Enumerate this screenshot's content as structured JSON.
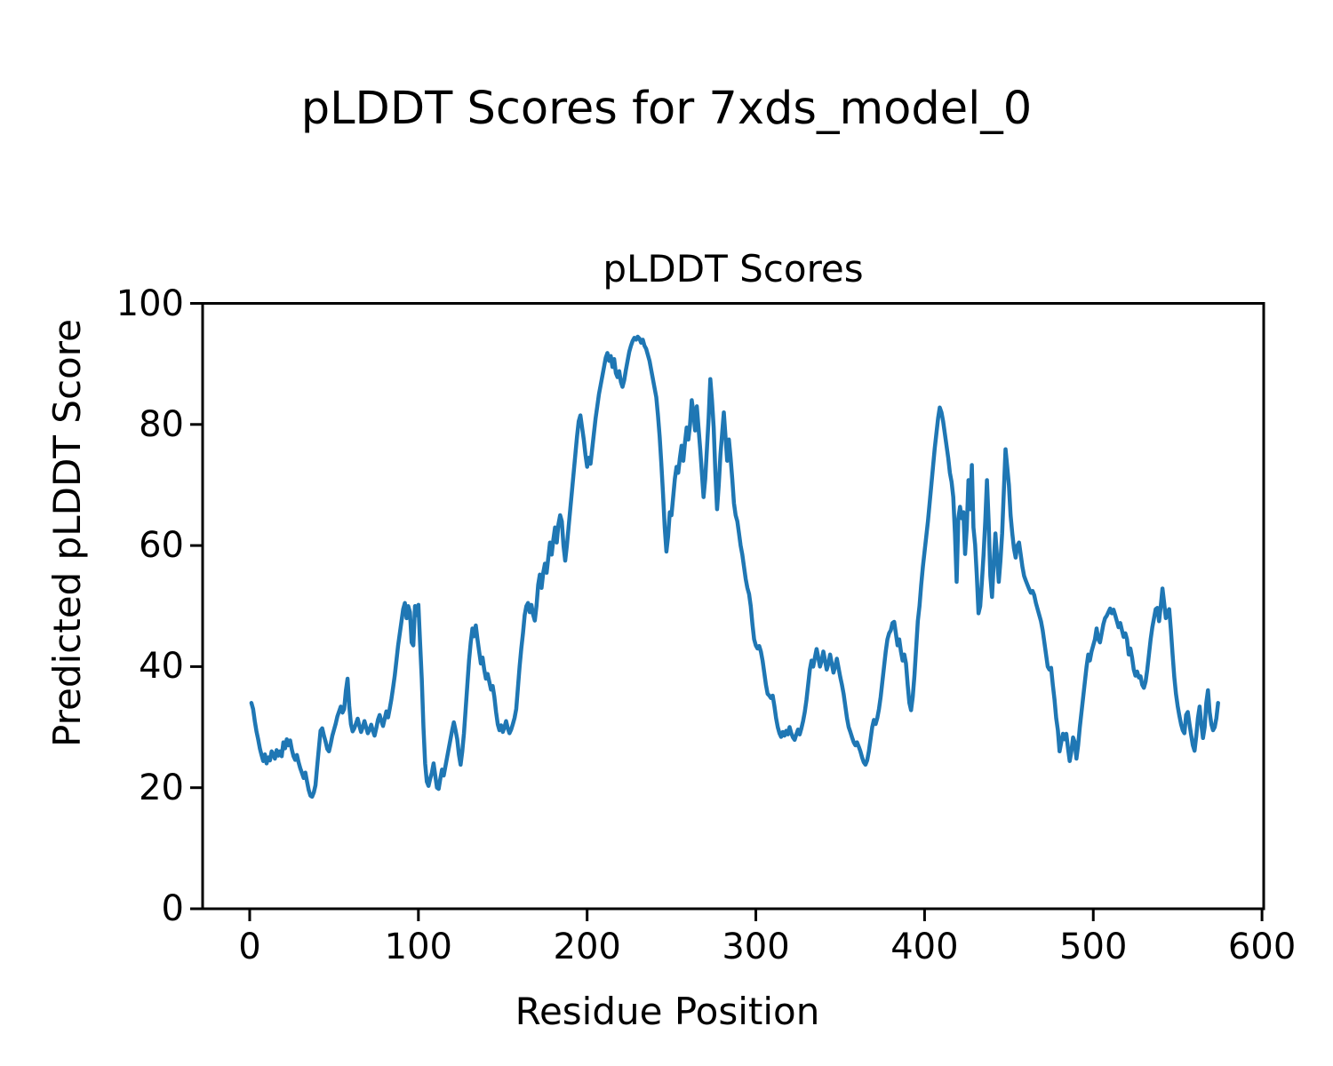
{
  "figure": {
    "suptitle": "pLDDT Scores for 7xds_model_0",
    "axes_title": "pLDDT Scores",
    "xlabel": "Residue Position",
    "ylabel": "Predicted pLDDT Score"
  },
  "chart_data": {
    "type": "line",
    "title": "pLDDT Scores",
    "xlabel": "Residue Position",
    "ylabel": "Predicted pLDDT Score",
    "line_color": "#1f77b4",
    "axis_color": "#000000",
    "grid": false,
    "legend": "none",
    "xlim": [
      -27.9,
      601
    ],
    "ylim": [
      0,
      100
    ],
    "xticks": [
      0,
      100,
      200,
      300,
      400,
      500,
      600
    ],
    "yticks": [
      0,
      20,
      40,
      60,
      80,
      100
    ],
    "series": [
      {
        "name": "pLDDT",
        "x_start": 1,
        "x_step": 1,
        "values": [
          34.0,
          33.0,
          31.0,
          29.3,
          28.0,
          26.5,
          25.4,
          24.4,
          25.5,
          24.0,
          25.0,
          24.5,
          26.0,
          25.5,
          24.8,
          26.2,
          25.3,
          26.0,
          25.2,
          27.5,
          26.5,
          28.0,
          27.0,
          27.8,
          26.3,
          25.2,
          24.6,
          25.4,
          24.2,
          23.2,
          22.4,
          21.6,
          22.5,
          21.0,
          19.6,
          18.7,
          18.5,
          19.2,
          20.4,
          23.5,
          26.5,
          29.4,
          29.8,
          28.6,
          27.6,
          26.4,
          26.0,
          27.2,
          28.6,
          29.6,
          30.6,
          31.8,
          32.6,
          33.4,
          32.4,
          33.0,
          36.0,
          38.0,
          33.5,
          30.5,
          29.3,
          29.8,
          30.6,
          31.4,
          30.2,
          29.2,
          30.0,
          31.0,
          30.0,
          29.0,
          29.6,
          30.4,
          29.4,
          28.6,
          29.8,
          31.2,
          32.0,
          31.0,
          30.2,
          31.4,
          32.6,
          31.6,
          33.0,
          34.6,
          36.5,
          38.5,
          41.0,
          43.5,
          45.5,
          47.5,
          49.5,
          50.5,
          48.0,
          50.0,
          49.0,
          44.0,
          43.5,
          50.0,
          48.5,
          50.2,
          44.0,
          38.0,
          30.0,
          24.0,
          21.0,
          20.3,
          21.5,
          22.5,
          24.0,
          22.0,
          20.0,
          19.8,
          21.5,
          23.0,
          22.0,
          23.5,
          25.0,
          26.5,
          28.0,
          29.5,
          30.8,
          29.5,
          28.0,
          25.5,
          23.8,
          26.0,
          29.0,
          33.0,
          37.0,
          41.0,
          44.0,
          46.3,
          45.0,
          46.8,
          44.5,
          42.5,
          40.5,
          41.5,
          39.5,
          38.0,
          38.8,
          37.5,
          36.2,
          36.8,
          35.0,
          32.5,
          30.5,
          29.5,
          30.3,
          29.2,
          30.0,
          31.0,
          29.8,
          29.0,
          29.6,
          30.5,
          31.5,
          33.0,
          36.5,
          40.0,
          43.0,
          45.5,
          48.5,
          50.0,
          50.5,
          49.0,
          50.2,
          48.6,
          47.6,
          50.0,
          53.5,
          55.2,
          53.0,
          55.5,
          57.0,
          55.5,
          58.0,
          60.5,
          58.5,
          61.0,
          63.0,
          60.5,
          63.5,
          65.0,
          64.0,
          60.0,
          57.5,
          60.0,
          63.0,
          66.0,
          69.0,
          72.0,
          75.0,
          78.0,
          80.5,
          81.5,
          79.5,
          77.5,
          75.0,
          73.0,
          74.5,
          73.5,
          76.0,
          78.5,
          81.0,
          83.0,
          85.0,
          86.5,
          88.0,
          89.5,
          91.0,
          91.8,
          90.5,
          91.3,
          89.5,
          90.8,
          88.5,
          87.8,
          88.8,
          87.0,
          86.2,
          87.3,
          89.0,
          90.5,
          92.0,
          93.0,
          93.8,
          94.3,
          94.0,
          94.5,
          94.2,
          93.5,
          94.0,
          93.0,
          92.5,
          91.5,
          90.5,
          89.0,
          87.5,
          86.0,
          84.5,
          81.5,
          78.0,
          73.5,
          68.5,
          63.0,
          59.0,
          61.5,
          65.5,
          65.0,
          68.0,
          71.0,
          73.0,
          72.0,
          74.5,
          76.5,
          74.0,
          77.0,
          79.5,
          77.5,
          80.0,
          84.0,
          82.0,
          79.0,
          83.0,
          79.5,
          76.0,
          72.0,
          68.0,
          71.0,
          76.0,
          81.0,
          87.5,
          84.0,
          79.5,
          72.0,
          66.0,
          70.0,
          75.0,
          78.5,
          82.0,
          78.0,
          74.0,
          77.5,
          74.5,
          71.0,
          67.0,
          65.0,
          64.0,
          62.0,
          60.0,
          58.5,
          56.5,
          54.5,
          53.0,
          52.0,
          50.0,
          47.0,
          44.5,
          43.5,
          43.0,
          43.4,
          42.5,
          41.0,
          39.0,
          37.0,
          35.5,
          35.2,
          34.8,
          35.2,
          33.5,
          31.5,
          30.0,
          29.0,
          28.4,
          29.2,
          28.6,
          29.4,
          28.8,
          30.0,
          29.0,
          28.3,
          27.9,
          28.8,
          29.6,
          28.8,
          29.8,
          31.0,
          32.5,
          34.5,
          37.0,
          39.5,
          41.0,
          40.0,
          41.5,
          42.9,
          41.5,
          40.0,
          41.0,
          42.5,
          41.0,
          39.5,
          40.5,
          42.0,
          40.5,
          39.0,
          40.0,
          41.3,
          39.8,
          38.3,
          37.0,
          35.5,
          33.5,
          31.5,
          30.0,
          29.2,
          28.3,
          27.5,
          27.0,
          27.5,
          26.8,
          26.0,
          25.0,
          24.2,
          23.8,
          24.5,
          26.0,
          28.0,
          30.0,
          31.2,
          30.5,
          31.5,
          33.0,
          35.0,
          37.5,
          40.0,
          42.5,
          44.5,
          45.5,
          46.0,
          47.2,
          47.4,
          45.5,
          43.5,
          44.5,
          42.5,
          41.0,
          42.0,
          40.5,
          37.0,
          34.0,
          32.8,
          35.0,
          38.5,
          43.0,
          47.5,
          50.0,
          53.5,
          56.5,
          59.0,
          61.5,
          64.0,
          67.0,
          70.0,
          73.0,
          76.0,
          78.5,
          81.0,
          82.8,
          82.0,
          80.5,
          78.5,
          76.5,
          74.5,
          72.0,
          70.5,
          68.0,
          62.0,
          54.0,
          64.5,
          66.4,
          64.5,
          65.5,
          58.6,
          63.0,
          70.8,
          66.0,
          73.3,
          63.0,
          60.1,
          55.0,
          48.8,
          50.0,
          54.0,
          58.5,
          64.0,
          70.8,
          64.0,
          55.0,
          51.5,
          57.0,
          62.0,
          58.0,
          54.0,
          57.5,
          62.0,
          69.0,
          75.9,
          73.0,
          70.0,
          65.0,
          62.0,
          59.5,
          58.0,
          60.0,
          60.5,
          58.5,
          56.5,
          55.0,
          54.2,
          53.5,
          52.8,
          52.2,
          52.5,
          51.8,
          50.5,
          49.5,
          48.5,
          47.5,
          46.0,
          44.0,
          42.0,
          40.0,
          39.5,
          39.8,
          37.0,
          34.6,
          31.5,
          29.5,
          26.0,
          27.5,
          28.9,
          28.0,
          28.9,
          26.5,
          24.4,
          26.0,
          28.3,
          27.5,
          24.8,
          27.0,
          30.0,
          32.5,
          35.0,
          37.5,
          40.0,
          42.0,
          41.0,
          42.5,
          43.5,
          44.5,
          46.3,
          44.5,
          44.0,
          45.5,
          47.0,
          48.0,
          48.4,
          49.0,
          49.6,
          48.8,
          49.4,
          48.5,
          47.5,
          46.5,
          47.2,
          46.0,
          44.9,
          45.5,
          44.5,
          42.0,
          43.0,
          41.5,
          39.5,
          38.5,
          39.2,
          38.2,
          38.4,
          37.0,
          36.5,
          37.5,
          39.5,
          42.0,
          44.5,
          46.5,
          48.0,
          49.5,
          49.7,
          47.5,
          50.0,
          52.9,
          50.5,
          48.0,
          49.0,
          49.5,
          46.0,
          42.0,
          38.3,
          35.5,
          33.5,
          31.9,
          30.5,
          29.5,
          29.0,
          32.0,
          32.5,
          30.5,
          28.7,
          27.0,
          26.1,
          28.5,
          31.5,
          33.4,
          30.5,
          28.2,
          30.0,
          34.0,
          36.1,
          32.5,
          30.5,
          29.5,
          30.0,
          31.5,
          34.0
        ]
      }
    ]
  }
}
